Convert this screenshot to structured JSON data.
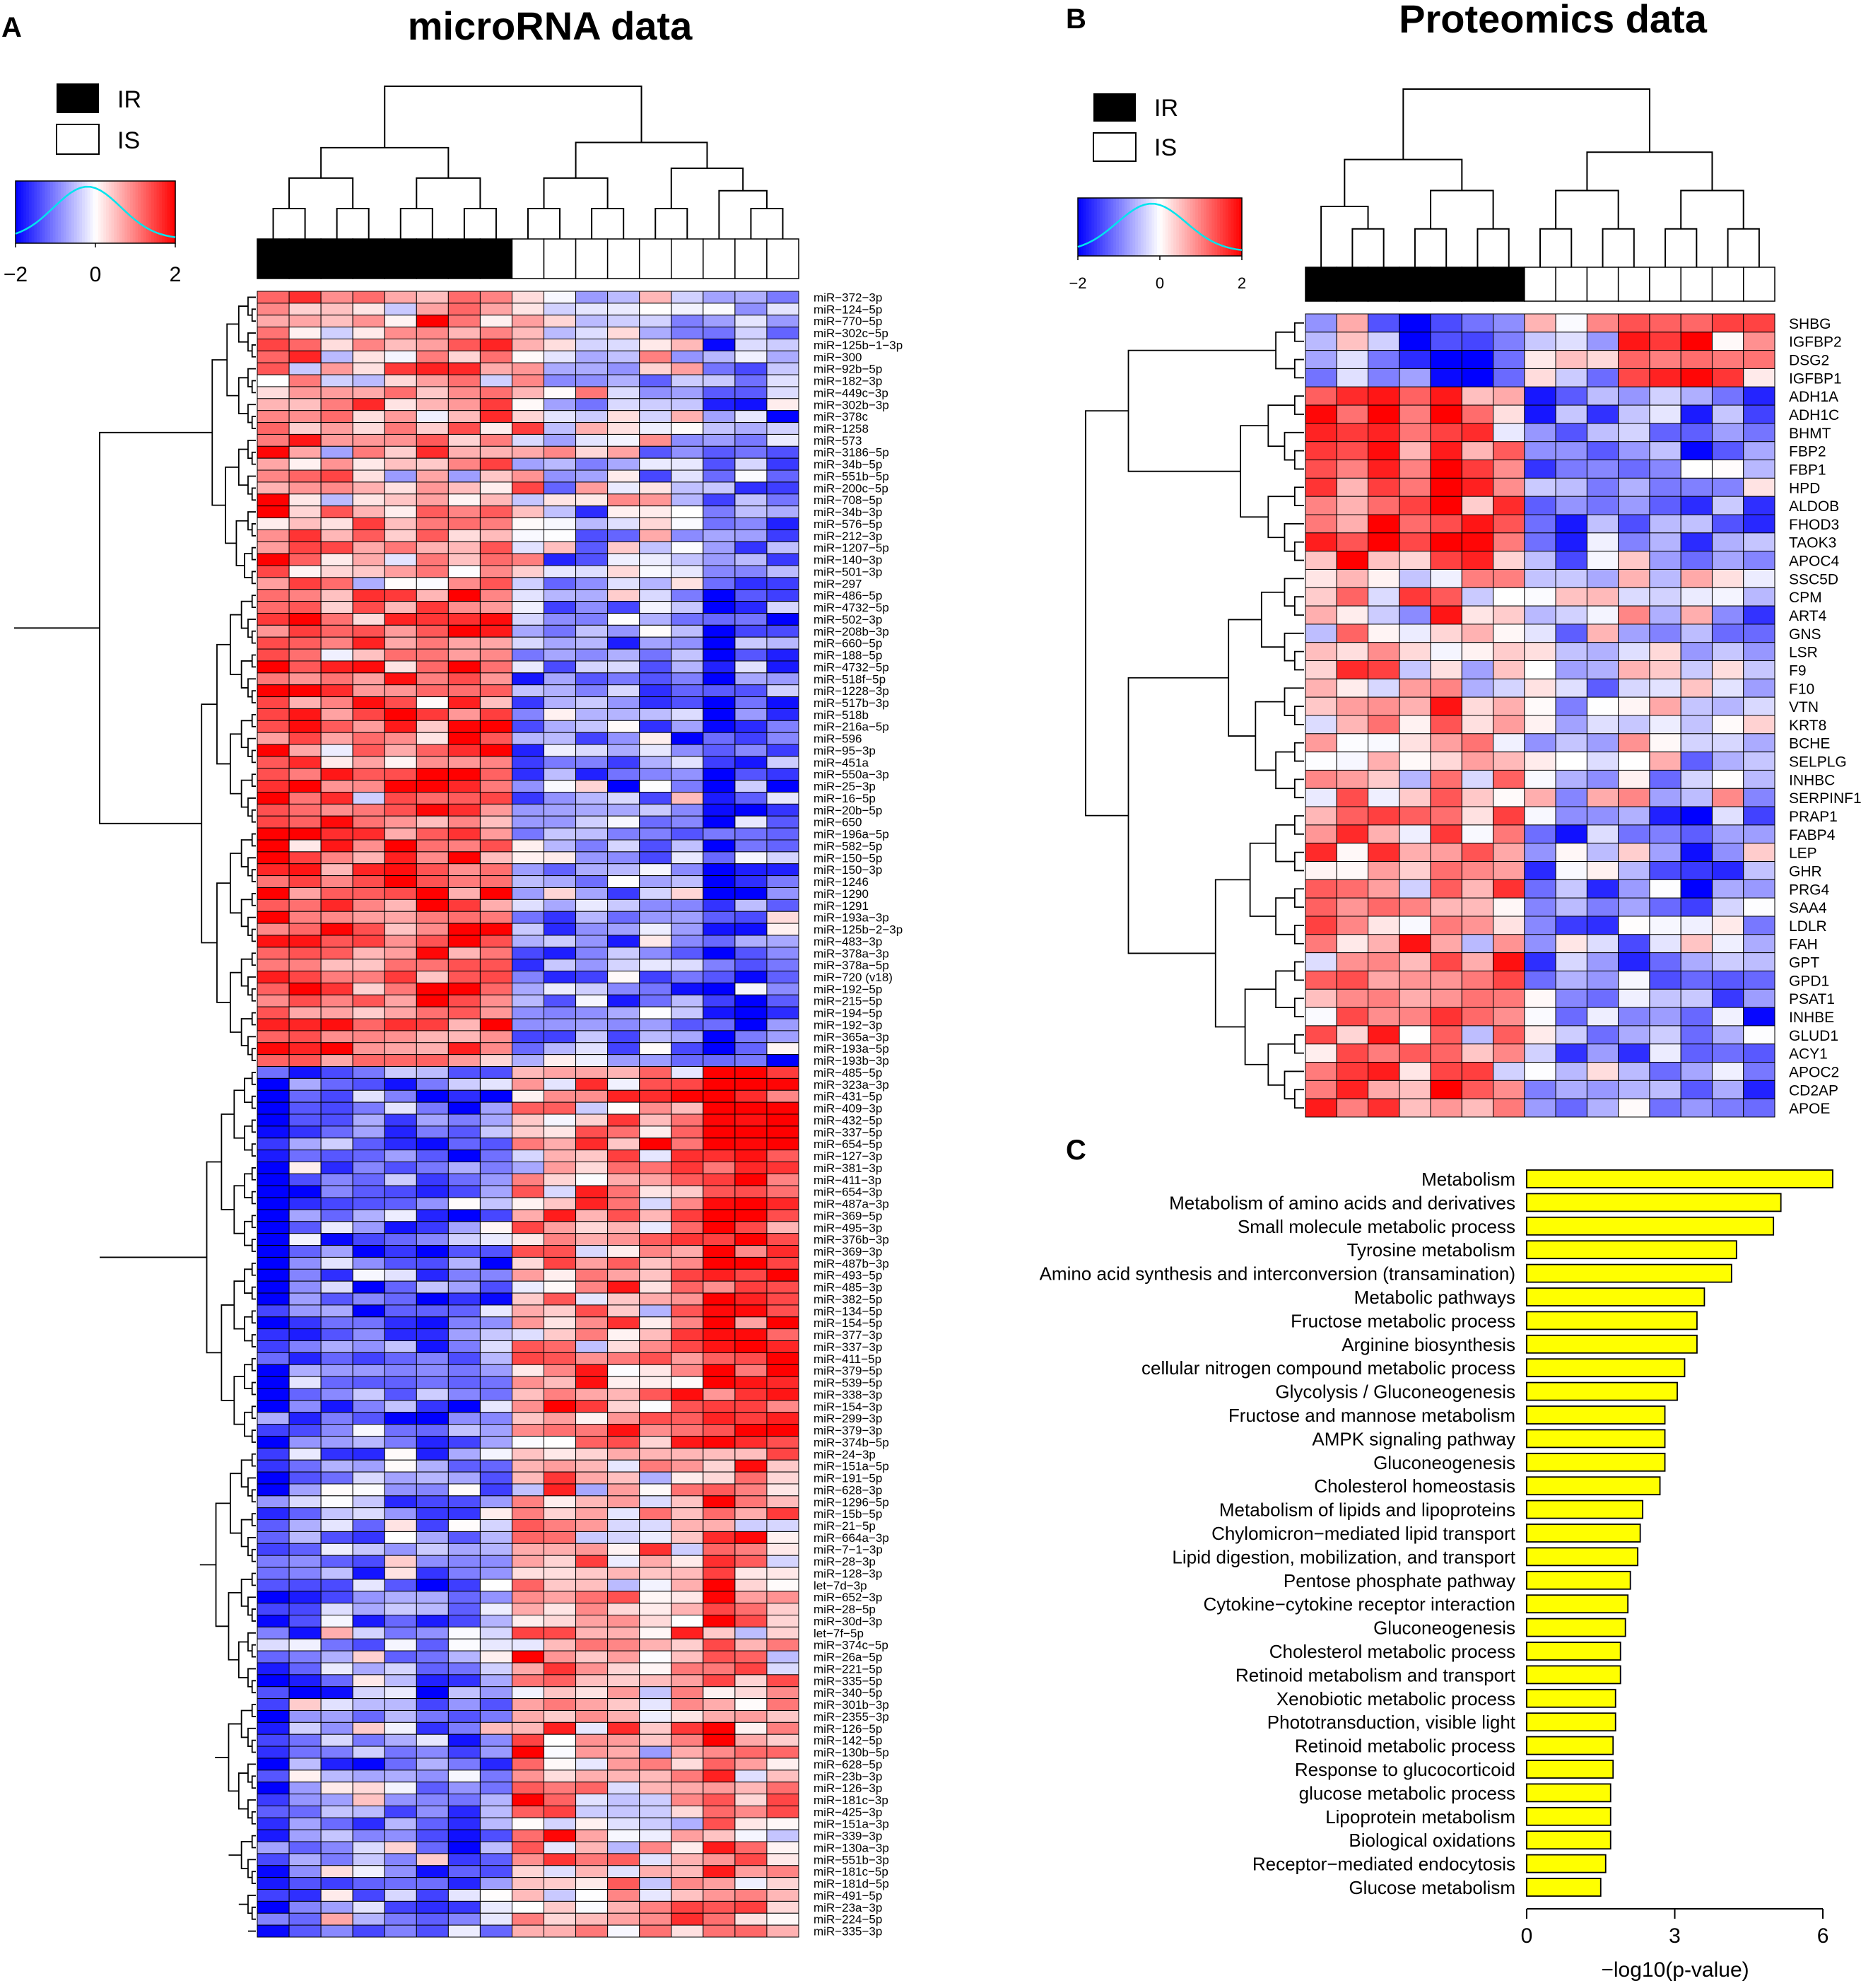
{
  "panels": {
    "a": {
      "label": "A",
      "title": "microRNA data"
    },
    "b": {
      "label": "B",
      "title": "Proteomics data"
    },
    "c": {
      "label": "C"
    }
  },
  "legend": {
    "ir_label": "IR",
    "is_label": "IS"
  },
  "color_key": {
    "low_color": "#0000ff",
    "mid_color": "#ffffff",
    "high_color": "#ff0000",
    "density_color": "#00e5ee",
    "range": [
      -2,
      2
    ],
    "ticks": [
      "-2",
      "0",
      "2"
    ]
  },
  "group_colors": {
    "IR": "#000000",
    "IS": "#ffffff"
  },
  "chart_data": [
    {
      "type": "heatmap",
      "panel": "A",
      "title": "microRNA data",
      "columns": 17,
      "column_groups": [
        "IR",
        "IR",
        "IR",
        "IR",
        "IR",
        "IR",
        "IR",
        "IR",
        "IS",
        "IS",
        "IS",
        "IS",
        "IS",
        "IS",
        "IS",
        "IS",
        "IS"
      ],
      "rows": [
        "miR-372-3p",
        "miR-124-5p",
        "miR-770-5p",
        "miR-302c-5p",
        "miR-125b-1-3p",
        "miR-300",
        "miR-92b-5p",
        "miR-182-3p",
        "miR-449c-3p",
        "miR-302b-3p",
        "miR-378c",
        "miR-1258",
        "miR-573",
        "miR-3186-5p",
        "miR-34b-5p",
        "miR-551b-5p",
        "miR-200c-5p",
        "miR-708-5p",
        "miR-34b-3p",
        "miR-576-5p",
        "miR-212-3p",
        "miR-1207-5p",
        "miR-140-3p",
        "miR-501-3p",
        "miR-297",
        "miR-486-5p",
        "miR-4732-5p",
        "miR-502-3p",
        "miR-208b-3p",
        "miR-660-5p",
        "miR-188-5p",
        "miR-4732-5p",
        "miR-518f-5p",
        "miR-1228-3p",
        "miR-517b-3p",
        "miR-518b",
        "miR-216a-5p",
        "miR-596",
        "miR-95-3p",
        "miR-451a",
        "miR-550a-3p",
        "miR-25-3p",
        "miR-16-5p",
        "miR-20b-5p",
        "miR-650",
        "miR-196a-5p",
        "miR-582-5p",
        "miR-150-5p",
        "miR-150-3p",
        "miR-1246",
        "miR-1290",
        "miR-1291",
        "miR-193a-3p",
        "miR-125b-2-3p",
        "miR-483-3p",
        "miR-378a-3p",
        "miR-378a-5p",
        "miR-720 (v18)",
        "miR-192-5p",
        "miR-215-5p",
        "miR-194-5p",
        "miR-192-3p",
        "miR-365a-3p",
        "miR-193a-5p",
        "miR-193b-3p",
        "miR-485-5p",
        "miR-323a-3p",
        "miR-431-5p",
        "miR-409-3p",
        "miR-432-5p",
        "miR-337-5p",
        "miR-654-5p",
        "miR-127-3p",
        "miR-381-3p",
        "miR-411-3p",
        "miR-654-3p",
        "miR-487a-3p",
        "miR-369-5p",
        "miR-495-3p",
        "miR-376b-3p",
        "miR-369-3p",
        "miR-487b-3p",
        "miR-493-5p",
        "miR-485-3p",
        "miR-382-5p",
        "miR-134-5p",
        "miR-154-5p",
        "miR-377-3p",
        "miR-337-3p",
        "miR-411-5p",
        "miR-379-5p",
        "miR-539-5p",
        "miR-338-3p",
        "miR-154-3p",
        "miR-299-3p",
        "miR-379-3p",
        "miR-374b-5p",
        "miR-24-3p",
        "miR-151a-5p",
        "miR-191-5p",
        "miR-628-3p",
        "miR-1296-5p",
        "miR-15b-5p",
        "miR-21-5p",
        "miR-664a-3p",
        "miR-7-1-3p",
        "miR-28-3p",
        "miR-128-3p",
        "let-7d-3p",
        "miR-652-3p",
        "miR-28-5p",
        "miR-30d-3p",
        "let-7f-5p",
        "miR-374c-5p",
        "miR-26a-5p",
        "miR-221-5p",
        "miR-335-5p",
        "miR-340-5p",
        "miR-301b-3p",
        "miR-2355-3p",
        "miR-126-5p",
        "miR-142-5p",
        "miR-130b-5p",
        "miR-628-5p",
        "miR-23b-3p",
        "miR-126-3p",
        "miR-181c-3p",
        "miR-425-3p",
        "miR-151a-3p",
        "miR-339-3p",
        "miR-130a-3p",
        "miR-551b-3p",
        "miR-181c-5p",
        "miR-181d-5p",
        "miR-491-5p",
        "miR-23a-3p",
        "miR-224-5p",
        "miR-335-3p"
      ],
      "cluster_blocks": [
        {
          "rows": [
            0,
            24
          ],
          "profile": [
            0.55,
            0.35,
            0.3,
            0.35,
            0.3,
            0.4,
            0.4,
            0.45,
            0.1,
            -0.15,
            -0.2,
            -0.1,
            -0.1,
            -0.2,
            -0.45,
            -0.4,
            -0.45
          ]
        },
        {
          "rows": [
            25,
            64
          ],
          "profile": [
            0.8,
            0.6,
            0.5,
            0.5,
            0.55,
            0.6,
            0.7,
            0.5,
            -0.35,
            -0.45,
            -0.4,
            -0.45,
            -0.3,
            -0.45,
            -0.85,
            -0.6,
            -0.55
          ]
        },
        {
          "rows": [
            65,
            96
          ],
          "profile": [
            -0.95,
            -0.6,
            -0.55,
            -0.55,
            -0.6,
            -0.65,
            -0.55,
            -0.5,
            0.3,
            0.35,
            0.45,
            0.35,
            0.4,
            0.6,
            0.95,
            0.9,
            0.9
          ]
        },
        {
          "rows": [
            97,
            139
          ],
          "profile": [
            -0.8,
            -0.45,
            -0.35,
            -0.35,
            -0.3,
            -0.5,
            -0.45,
            -0.35,
            0.45,
            0.35,
            0.25,
            0.25,
            0.2,
            0.35,
            0.55,
            0.35,
            0.25
          ]
        }
      ]
    },
    {
      "type": "heatmap",
      "panel": "B",
      "title": "Proteomics data",
      "columns": 15,
      "column_groups": [
        "IR",
        "IR",
        "IR",
        "IR",
        "IR",
        "IR",
        "IR",
        "IS",
        "IS",
        "IS",
        "IS",
        "IS",
        "IS",
        "IS",
        "IS"
      ],
      "rows": [
        "SHBG",
        "IGFBP2",
        "DSG2",
        "IGFBP1",
        "ADH1A",
        "ADH1C",
        "BHMT",
        "FBP2",
        "FBP1",
        "HPD",
        "ALDOB",
        "FHOD3",
        "TAOK3",
        "APOC4",
        "SSC5D",
        "CPM",
        "ART4",
        "GNS",
        "LSR",
        "F9",
        "F10",
        "VTN",
        "KRT8",
        "BCHE",
        "SELPLG",
        "INHBC",
        "SERPINF1",
        "PRAP1",
        "FABP4",
        "LEP",
        "GHR",
        "PRG4",
        "SAA4",
        "LDLR",
        "FAH",
        "GPT",
        "GPD1",
        "PSAT1",
        "INHBE",
        "GLUD1",
        "ACY1",
        "APOC2",
        "CD2AP",
        "APOE"
      ],
      "cluster_blocks": [
        {
          "rows": [
            0,
            3
          ],
          "profile": [
            -0.2,
            -0.1,
            -0.3,
            -0.8,
            -0.7,
            -0.8,
            -0.6,
            0.2,
            0.15,
            0.1,
            0.5,
            0.6,
            0.7,
            0.4,
            0.5
          ]
        },
        {
          "rows": [
            4,
            13
          ],
          "profile": [
            0.7,
            0.6,
            0.75,
            0.5,
            0.95,
            0.6,
            0.3,
            -0.6,
            -0.6,
            -0.35,
            -0.5,
            -0.4,
            -0.6,
            -0.5,
            -0.55
          ]
        },
        {
          "rows": [
            14,
            26
          ],
          "profile": [
            0.2,
            0.15,
            0.2,
            0.15,
            0.3,
            0.2,
            0.2,
            -0.1,
            -0.15,
            -0.15,
            -0.1,
            -0.15,
            -0.2,
            -0.15,
            -0.2
          ]
        },
        {
          "rows": [
            27,
            43
          ],
          "profile": [
            0.45,
            0.4,
            0.45,
            0.35,
            0.6,
            0.35,
            0.4,
            -0.35,
            -0.3,
            -0.35,
            -0.3,
            -0.35,
            -0.45,
            -0.3,
            -0.35
          ]
        }
      ]
    },
    {
      "type": "bar",
      "panel": "C",
      "orientation": "horizontal",
      "categories": [
        "Metabolism",
        "Metabolism of amino acids and derivatives",
        "Small molecule metabolic process",
        "Tyrosine metabolism",
        "Amino acid synthesis and interconversion (transamination)",
        "Metabolic pathways",
        "Fructose metabolic process",
        "Arginine biosynthesis",
        "cellular nitrogen compound metabolic process",
        "Glycolysis / Gluconeogenesis",
        "Fructose and mannose metabolism",
        "AMPK signaling pathway",
        "Gluconeogenesis",
        "Cholesterol homeostasis",
        "Metabolism of lipids and lipoproteins",
        "Chylomicron-mediated lipid transport",
        "Lipid digestion, mobilization, and transport",
        "Pentose phosphate pathway",
        "Cytokine-cytokine receptor interaction",
        "Gluconeogenesis",
        "Cholesterol metabolic process",
        "Retinoid metabolism and transport",
        "Xenobiotic metabolic process",
        "Phototransduction, visible light",
        "Retinoid metabolic process",
        "Response to glucocorticoid",
        "glucose metabolic process",
        "Lipoprotein metabolism",
        "Biological oxidations",
        "Receptor-mediated endocytosis",
        "Glucose metabolism"
      ],
      "values": [
        6.2,
        5.15,
        5.0,
        4.25,
        4.15,
        3.6,
        3.45,
        3.45,
        3.2,
        3.05,
        2.8,
        2.8,
        2.8,
        2.7,
        2.35,
        2.3,
        2.25,
        2.1,
        2.05,
        2.0,
        1.9,
        1.9,
        1.8,
        1.8,
        1.75,
        1.75,
        1.7,
        1.7,
        1.7,
        1.6,
        1.5
      ],
      "bar_color": "#ffff00",
      "xlabel": "-log10(p-value)",
      "xticks": [
        0,
        3,
        6
      ],
      "xlim": [
        0,
        6.2
      ]
    }
  ]
}
